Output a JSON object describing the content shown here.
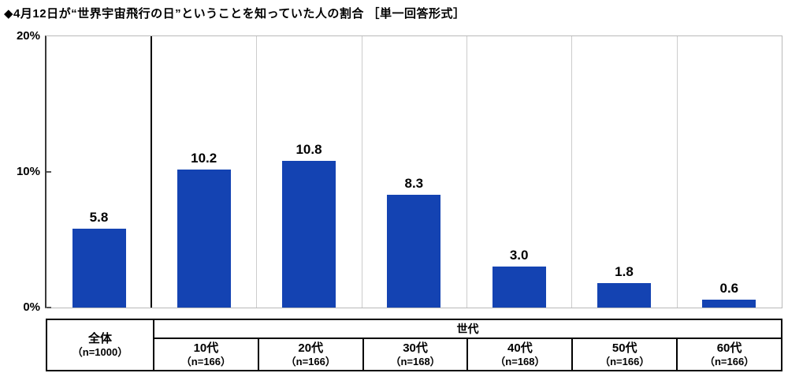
{
  "title": "◆4月12日が“世界宇宙飛行の日”ということを知っていた人の割合 ［単一回答形式］",
  "chart_data": {
    "type": "bar",
    "title": "4月12日が“世界宇宙飛行の日”ということを知っていた人の割合",
    "response_format": "単一回答形式",
    "categories": [
      "全体",
      "10代",
      "20代",
      "30代",
      "40代",
      "50代",
      "60代"
    ],
    "sample_sizes": [
      "n=1000",
      "n=166",
      "n=166",
      "n=168",
      "n=168",
      "n=166",
      "n=166"
    ],
    "values": [
      5.8,
      10.2,
      10.8,
      8.3,
      3.0,
      1.8,
      0.6
    ],
    "value_labels": [
      "5.8",
      "10.2",
      "10.8",
      "8.3",
      "3.0",
      "1.8",
      "0.6"
    ],
    "ylim": [
      0,
      20
    ],
    "yticks": [
      {
        "value": 20,
        "label": "20%"
      },
      {
        "value": 10,
        "label": "10%"
      },
      {
        "value": 0,
        "label": "0%"
      }
    ],
    "xlabel": "",
    "ylabel": "",
    "grid": false,
    "legend": "none",
    "bar_color": "#1443b2"
  },
  "table": {
    "overall_label": "全体",
    "overall_n": "（n=1000）",
    "group_header": "世代",
    "columns": [
      {
        "label": "10代",
        "n": "（n=166）"
      },
      {
        "label": "20代",
        "n": "（n=166）"
      },
      {
        "label": "30代",
        "n": "（n=168）"
      },
      {
        "label": "40代",
        "n": "（n=168）"
      },
      {
        "label": "50代",
        "n": "（n=166）"
      },
      {
        "label": "60代",
        "n": "（n=166）"
      }
    ]
  }
}
